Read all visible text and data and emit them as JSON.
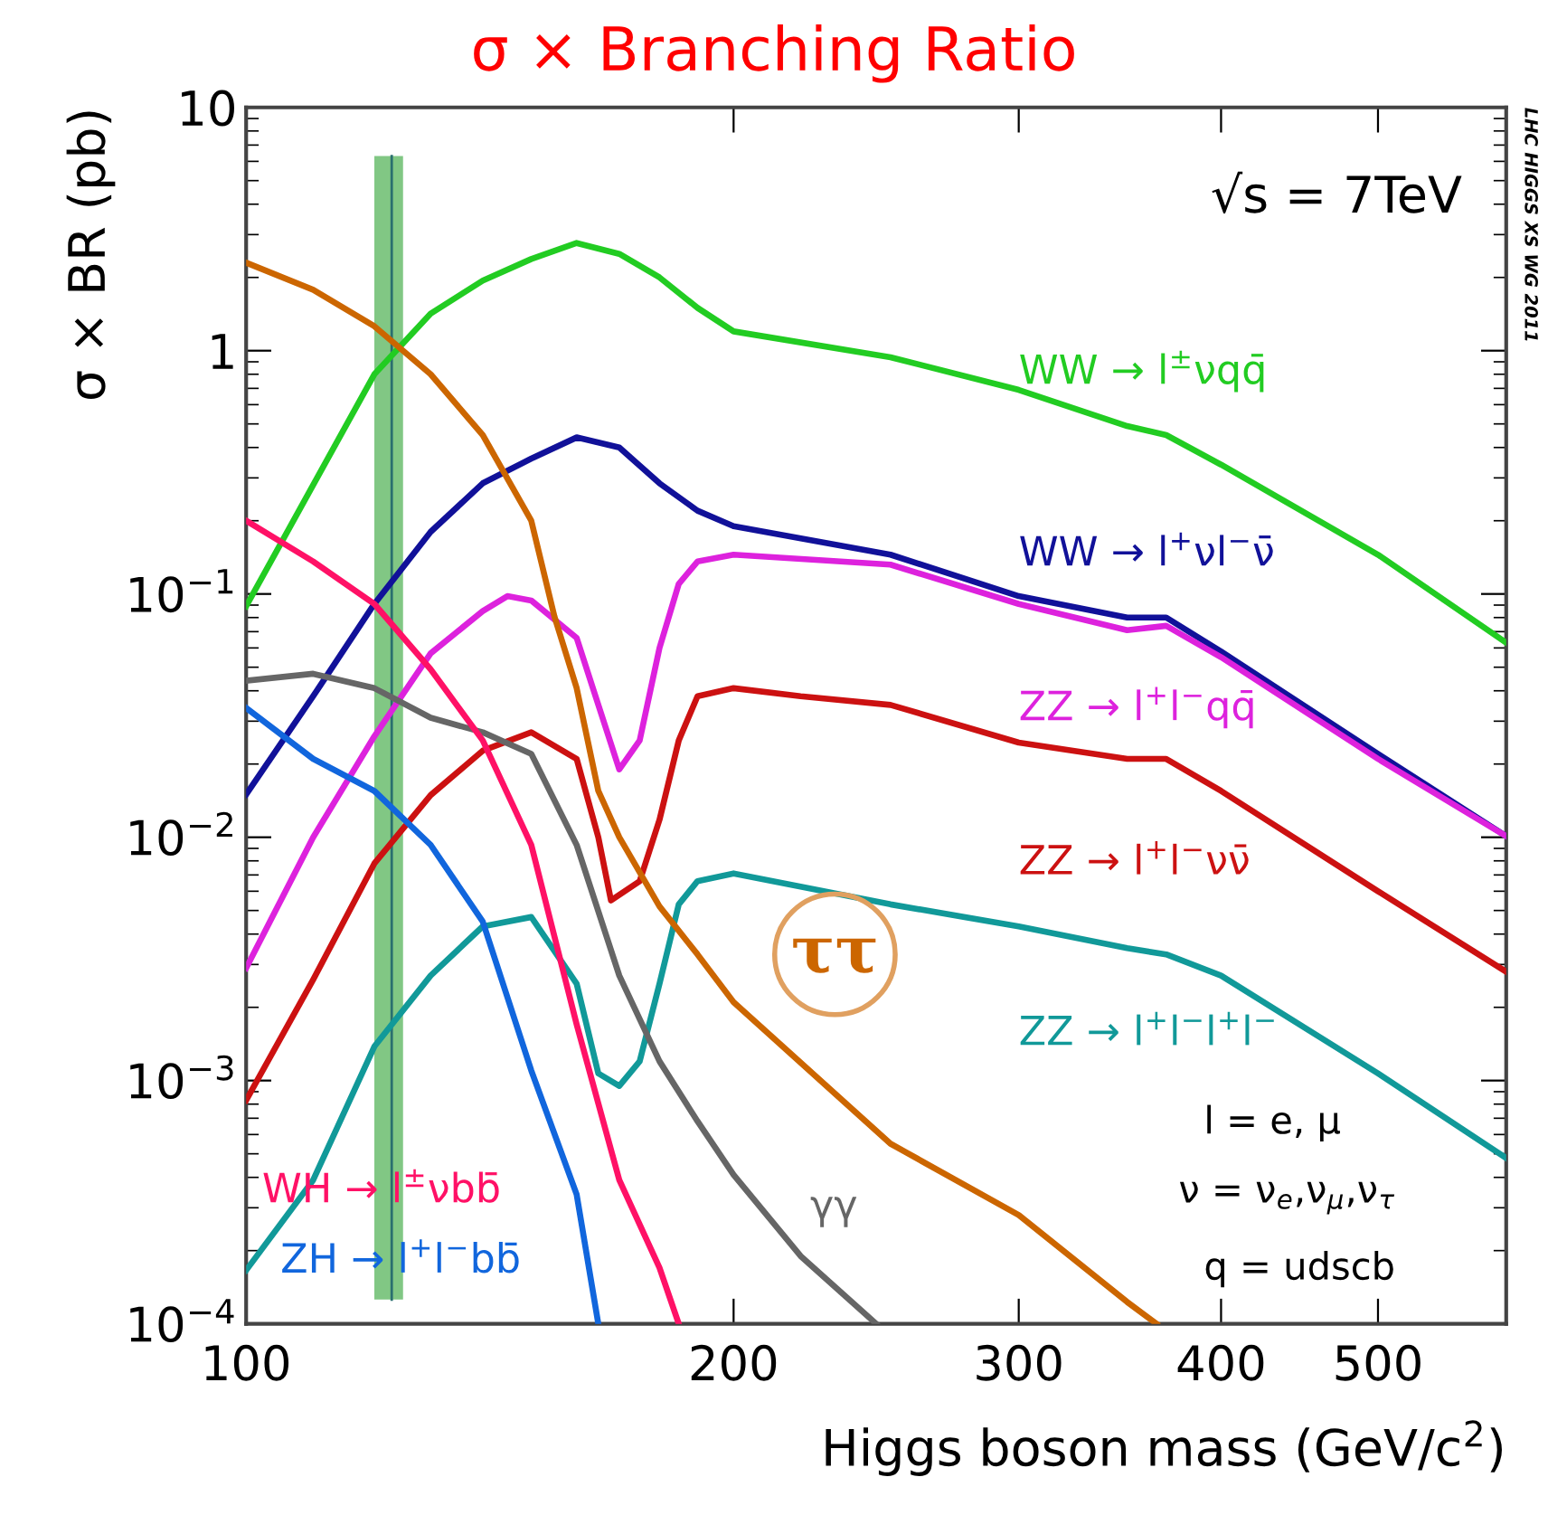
{
  "chart_data": {
    "type": "line",
    "title": "σ × Branching Ratio",
    "xlabel": "Higgs boson mass (GeV/c$^{2}$)",
    "ylabel": "σ × BR (pb)",
    "log": "xy",
    "xlim": [
      100,
      600
    ],
    "ylim": [
      0.0001,
      10
    ],
    "xticks": [
      100,
      200,
      300,
      400,
      500
    ],
    "yticks": [
      {
        "value": 0.0001,
        "label": "10$^{−4}$"
      },
      {
        "value": 0.001,
        "label": "10$^{−3}$"
      },
      {
        "value": 0.01,
        "label": "10$^{−2}$"
      },
      {
        "value": 0.1,
        "label": "10$^{−1}$"
      },
      1,
      10
    ],
    "grid": false,
    "marker": "none",
    "line_style": "solid",
    "series": [
      {
        "name": "WW → l$^{±}$νqq̄",
        "color": "#22cc22",
        "x": [
          100,
          120,
          130,
          140,
          150,
          160,
          170,
          180,
          190,
          200,
          250,
          300,
          350,
          370,
          400,
          500,
          600
        ],
        "values": [
          0.089,
          0.8,
          1.42,
          1.94,
          2.38,
          2.77,
          2.5,
          2.0,
          1.5,
          1.2,
          0.94,
          0.69,
          0.49,
          0.45,
          0.34,
          0.145,
          0.063
        ]
      },
      {
        "name": "WW → l$^{+}$νl$^{−}$ν̄",
        "color": "#111199",
        "x": [
          100,
          110,
          120,
          130,
          140,
          150,
          160,
          170,
          180,
          190,
          200,
          250,
          300,
          350,
          370,
          400,
          500,
          600
        ],
        "values": [
          0.015,
          0.038,
          0.091,
          0.18,
          0.285,
          0.36,
          0.44,
          0.4,
          0.285,
          0.22,
          0.19,
          0.145,
          0.098,
          0.08,
          0.08,
          0.058,
          0.022,
          0.0101
        ]
      },
      {
        "name": "ZZ → l$^{+}$l$^{−}$qq̄",
        "color": "#dd22dd",
        "x": [
          100,
          110,
          120,
          130,
          140,
          145,
          150,
          160,
          165,
          170,
          175,
          180,
          185,
          190,
          200,
          250,
          300,
          350,
          370,
          400,
          500,
          600
        ],
        "values": [
          0.0029,
          0.01,
          0.026,
          0.057,
          0.085,
          0.098,
          0.094,
          0.066,
          0.035,
          0.019,
          0.025,
          0.06,
          0.11,
          0.136,
          0.145,
          0.132,
          0.091,
          0.071,
          0.074,
          0.055,
          0.021,
          0.0101
        ]
      },
      {
        "name": "ZZ → l$^{+}$l$^{−}$νν̄",
        "color": "#cc1111",
        "x": [
          100,
          110,
          120,
          130,
          140,
          150,
          160,
          165,
          168,
          175,
          180,
          185,
          190,
          200,
          220,
          250,
          300,
          350,
          370,
          400,
          500,
          600
        ],
        "values": [
          0.00083,
          0.0026,
          0.0078,
          0.0149,
          0.0227,
          0.027,
          0.021,
          0.01,
          0.0055,
          0.0066,
          0.0118,
          0.025,
          0.038,
          0.041,
          0.038,
          0.035,
          0.0245,
          0.021,
          0.021,
          0.0155,
          0.006,
          0.0028
        ]
      },
      {
        "name": "ZZ → l$^{+}$l$^{−}$l$^{+}$l$^{−}$",
        "color": "#119999",
        "x": [
          100,
          110,
          120,
          130,
          140,
          150,
          160,
          165,
          170,
          175,
          180,
          185,
          190,
          200,
          250,
          300,
          350,
          370,
          400,
          500,
          600
        ],
        "values": [
          0.000166,
          0.00039,
          0.00138,
          0.0027,
          0.0043,
          0.0047,
          0.0025,
          0.00107,
          0.00095,
          0.0012,
          0.0025,
          0.0053,
          0.0066,
          0.0071,
          0.0053,
          0.0043,
          0.0035,
          0.0033,
          0.0027,
          0.00107,
          0.00048
        ]
      },
      {
        "name": "ττ",
        "color": "#cc6600",
        "x": [
          100,
          110,
          120,
          130,
          140,
          150,
          155,
          160,
          165,
          170,
          180,
          190,
          200,
          250,
          300,
          350,
          365
        ],
        "values": [
          2.3,
          1.78,
          1.26,
          0.8,
          0.45,
          0.2,
          0.081,
          0.041,
          0.0155,
          0.01,
          0.0052,
          0.0033,
          0.0021,
          0.00055,
          0.00028,
          0.000123,
          0.0001
        ]
      },
      {
        "name": "γγ",
        "color": "#666666",
        "x": [
          100,
          110,
          120,
          130,
          140,
          150,
          160,
          170,
          180,
          190,
          200,
          220,
          245
        ],
        "values": [
          0.044,
          0.047,
          0.041,
          0.031,
          0.027,
          0.022,
          0.0093,
          0.0027,
          0.0012,
          0.00068,
          0.00041,
          0.00019,
          0.0001
        ]
      },
      {
        "name": "WH → l$^{±}$νbb̄",
        "color": "#ff1166",
        "x": [
          100,
          110,
          120,
          130,
          140,
          150,
          160,
          170,
          180,
          185
        ],
        "values": [
          0.2,
          0.136,
          0.091,
          0.049,
          0.025,
          0.0093,
          0.0017,
          0.00039,
          0.00017,
          0.0001
        ]
      },
      {
        "name": "ZH → l$^{+}$l$^{−}$bb̄",
        "color": "#1166dd",
        "x": [
          100,
          110,
          120,
          130,
          140,
          150,
          160,
          165
        ],
        "values": [
          0.034,
          0.021,
          0.0155,
          0.0093,
          0.0045,
          0.0011,
          0.00034,
          0.0001
        ]
      }
    ],
    "bands": [
      {
        "axis": "x",
        "from": 120,
        "to": 125,
        "color": "#4caf50"
      }
    ],
    "ref_lines": [
      {
        "axis": "x",
        "value": 123,
        "color": "#2a6f6f",
        "line_style": "solid"
      }
    ],
    "annotations": [
      "√s = 7TeV",
      "l = e, μ",
      "ν = ν$_{e}$,ν$_{μ}$,ν$_{τ}$",
      "q = udscb",
      "LHC HIGGS XS WG 2011"
    ]
  }
}
